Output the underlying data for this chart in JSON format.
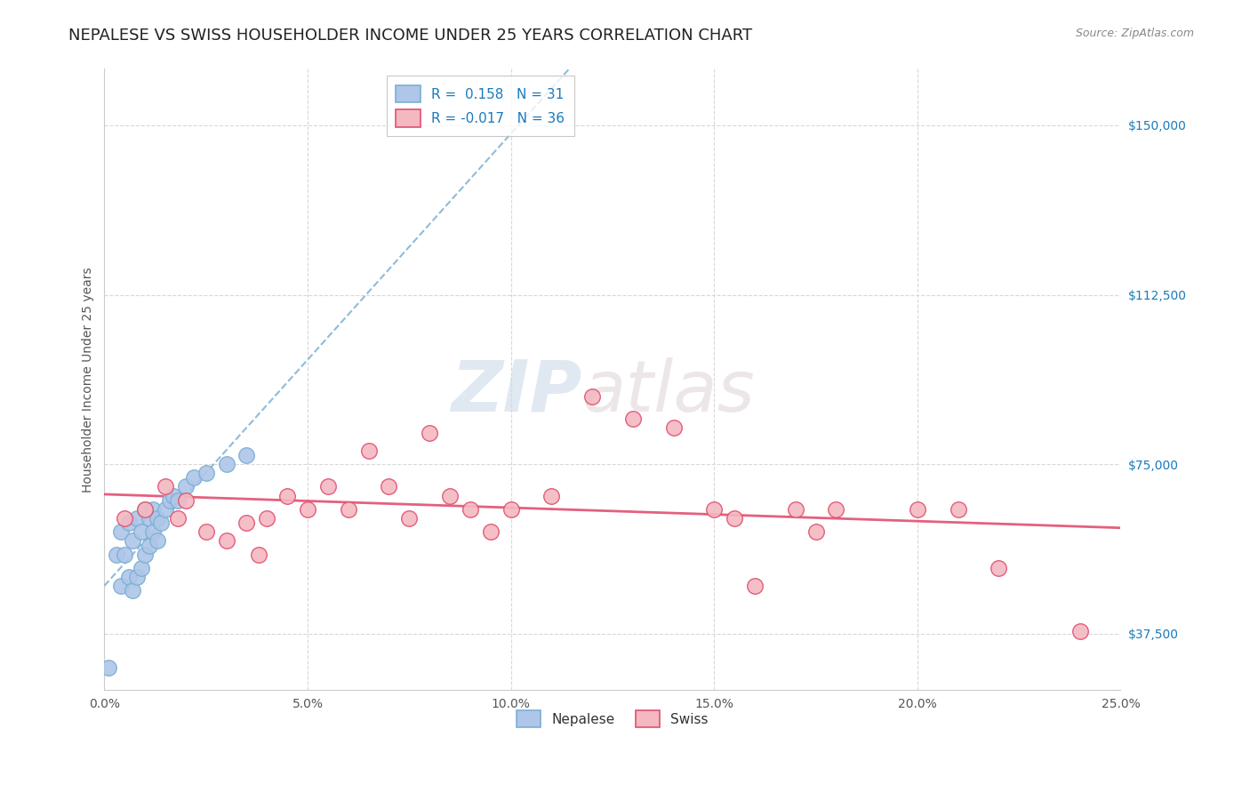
{
  "title": "NEPALESE VS SWISS HOUSEHOLDER INCOME UNDER 25 YEARS CORRELATION CHART",
  "source": "Source: ZipAtlas.com",
  "ylabel": "Householder Income Under 25 years",
  "xlim": [
    0.0,
    0.25
  ],
  "ylim": [
    25000,
    162500
  ],
  "xticks": [
    0.0,
    0.05,
    0.1,
    0.15,
    0.2,
    0.25
  ],
  "xticklabels": [
    "0.0%",
    "5.0%",
    "10.0%",
    "15.0%",
    "20.0%",
    "25.0%"
  ],
  "yticks": [
    37500,
    75000,
    112500,
    150000
  ],
  "yticklabels": [
    "$37,500",
    "$75,000",
    "$112,500",
    "$150,000"
  ],
  "r_nepalese": 0.158,
  "n_nepalese": 31,
  "r_swiss": -0.017,
  "n_swiss": 36,
  "nepalese_color": "#aec6e8",
  "swiss_color": "#f4b8c1",
  "nepalese_line_color": "#7bafd4",
  "swiss_line_color": "#e05070",
  "watermark_zip": "ZIP",
  "watermark_atlas": "atlas",
  "background_color": "#ffffff",
  "grid_color": "#d8d8d8",
  "ytick_color": "#1a7abd",
  "xtick_color": "#555555",
  "nepalese_x": [
    0.001,
    0.003,
    0.004,
    0.004,
    0.005,
    0.006,
    0.006,
    0.007,
    0.007,
    0.008,
    0.008,
    0.009,
    0.009,
    0.01,
    0.01,
    0.011,
    0.011,
    0.012,
    0.012,
    0.013,
    0.013,
    0.014,
    0.015,
    0.016,
    0.017,
    0.018,
    0.02,
    0.022,
    0.025,
    0.03,
    0.035
  ],
  "nepalese_y": [
    30000,
    55000,
    48000,
    60000,
    55000,
    50000,
    62000,
    47000,
    58000,
    50000,
    63000,
    52000,
    60000,
    55000,
    65000,
    57000,
    63000,
    60000,
    65000,
    58000,
    63000,
    62000,
    65000,
    67000,
    68000,
    67000,
    70000,
    72000,
    73000,
    75000,
    77000
  ],
  "swiss_x": [
    0.005,
    0.01,
    0.015,
    0.018,
    0.02,
    0.025,
    0.03,
    0.035,
    0.038,
    0.04,
    0.045,
    0.05,
    0.055,
    0.06,
    0.065,
    0.07,
    0.075,
    0.08,
    0.085,
    0.09,
    0.095,
    0.1,
    0.11,
    0.12,
    0.13,
    0.14,
    0.15,
    0.155,
    0.16,
    0.17,
    0.175,
    0.18,
    0.2,
    0.21,
    0.22,
    0.24
  ],
  "swiss_y": [
    63000,
    65000,
    70000,
    63000,
    67000,
    60000,
    58000,
    62000,
    55000,
    63000,
    68000,
    65000,
    70000,
    65000,
    78000,
    70000,
    63000,
    82000,
    68000,
    65000,
    60000,
    65000,
    68000,
    90000,
    85000,
    83000,
    65000,
    63000,
    48000,
    65000,
    60000,
    65000,
    65000,
    65000,
    52000,
    38000
  ],
  "title_fontsize": 13,
  "axis_label_fontsize": 10,
  "tick_fontsize": 10,
  "legend_fontsize": 11,
  "scatter_size": 160
}
